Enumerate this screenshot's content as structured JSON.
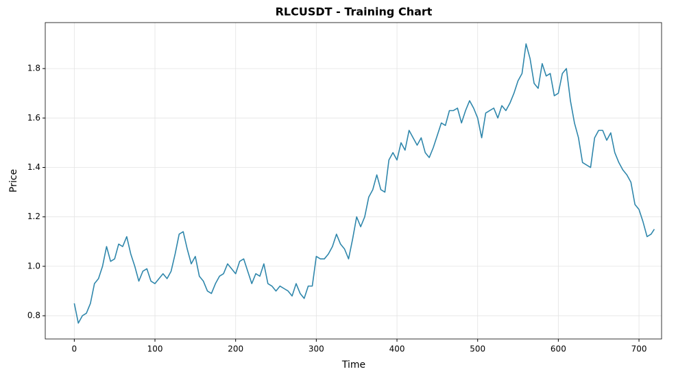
{
  "chart_data": {
    "type": "line",
    "title": "RLCUSDT - Training Chart",
    "x_label": "Time",
    "y_label": "Price",
    "x": [
      0,
      5,
      10,
      15,
      20,
      25,
      30,
      35,
      40,
      45,
      50,
      55,
      60,
      65,
      70,
      75,
      80,
      85,
      90,
      95,
      100,
      105,
      110,
      115,
      120,
      125,
      130,
      135,
      140,
      145,
      150,
      155,
      160,
      165,
      170,
      175,
      180,
      185,
      190,
      195,
      200,
      205,
      210,
      215,
      220,
      225,
      230,
      235,
      240,
      245,
      250,
      255,
      260,
      265,
      270,
      275,
      280,
      285,
      290,
      295,
      300,
      305,
      310,
      315,
      320,
      325,
      330,
      335,
      340,
      345,
      350,
      355,
      360,
      365,
      370,
      375,
      380,
      385,
      390,
      395,
      400,
      405,
      410,
      415,
      420,
      425,
      430,
      435,
      440,
      445,
      450,
      455,
      460,
      465,
      470,
      475,
      480,
      485,
      490,
      495,
      500,
      505,
      510,
      515,
      520,
      525,
      530,
      535,
      540,
      545,
      550,
      555,
      560,
      565,
      570,
      575,
      580,
      585,
      590,
      595,
      600,
      605,
      610,
      615,
      620,
      625,
      630,
      635,
      640,
      645,
      650,
      655,
      660,
      665,
      670,
      675,
      680,
      685,
      690,
      695,
      700,
      705,
      710,
      715,
      719
    ],
    "values": [
      0.85,
      0.77,
      0.8,
      0.81,
      0.85,
      0.93,
      0.95,
      1.0,
      1.08,
      1.02,
      1.03,
      1.09,
      1.08,
      1.12,
      1.05,
      1.0,
      0.94,
      0.98,
      0.99,
      0.94,
      0.93,
      0.95,
      0.97,
      0.95,
      0.98,
      1.05,
      1.13,
      1.14,
      1.07,
      1.01,
      1.04,
      0.96,
      0.94,
      0.9,
      0.89,
      0.93,
      0.96,
      0.97,
      1.01,
      0.99,
      0.97,
      1.02,
      1.03,
      0.98,
      0.93,
      0.97,
      0.96,
      1.01,
      0.93,
      0.92,
      0.9,
      0.92,
      0.91,
      0.9,
      0.88,
      0.93,
      0.89,
      0.87,
      0.92,
      0.92,
      1.04,
      1.03,
      1.03,
      1.05,
      1.08,
      1.13,
      1.09,
      1.07,
      1.03,
      1.11,
      1.2,
      1.16,
      1.2,
      1.28,
      1.31,
      1.37,
      1.31,
      1.3,
      1.43,
      1.46,
      1.43,
      1.5,
      1.47,
      1.55,
      1.52,
      1.49,
      1.52,
      1.46,
      1.44,
      1.48,
      1.53,
      1.58,
      1.57,
      1.63,
      1.63,
      1.64,
      1.58,
      1.63,
      1.67,
      1.64,
      1.6,
      1.52,
      1.62,
      1.63,
      1.64,
      1.6,
      1.65,
      1.63,
      1.66,
      1.7,
      1.75,
      1.78,
      1.9,
      1.84,
      1.74,
      1.72,
      1.82,
      1.77,
      1.78,
      1.69,
      1.7,
      1.78,
      1.8,
      1.67,
      1.58,
      1.52,
      1.42,
      1.41,
      1.4,
      1.52,
      1.55,
      1.55,
      1.51,
      1.54,
      1.46,
      1.42,
      1.39,
      1.37,
      1.34,
      1.25,
      1.23,
      1.18,
      1.12,
      1.13,
      1.15
    ],
    "color": "#2e86ab",
    "xlim": [
      -36,
      728
    ],
    "xticks": [
      0,
      100,
      200,
      300,
      400,
      500,
      600,
      700
    ],
    "ylim": [
      0.706,
      1.986
    ],
    "yticks": [
      {
        "value": 0.8,
        "label": "0.8"
      },
      {
        "value": 1.0,
        "label": "1.0"
      },
      {
        "value": 1.2,
        "label": "1.2"
      },
      {
        "value": 1.4,
        "label": "1.4"
      },
      {
        "value": 1.6,
        "label": "1.6"
      },
      {
        "value": 1.8,
        "label": "1.8"
      }
    ],
    "grid": true
  }
}
